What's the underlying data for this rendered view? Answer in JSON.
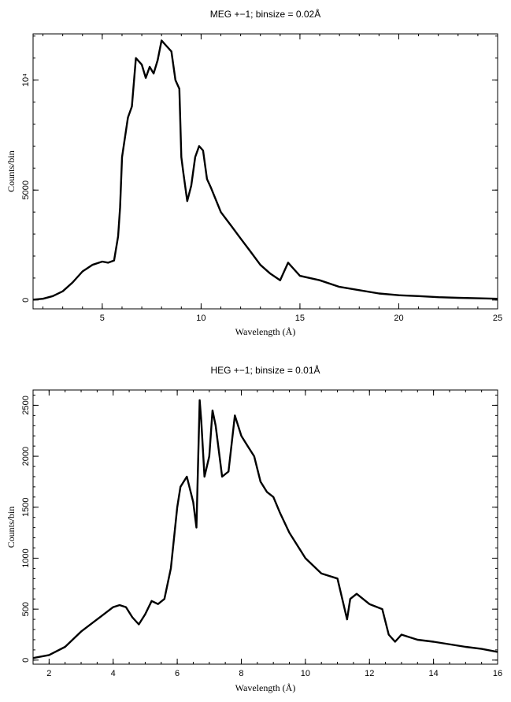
{
  "chart_data": [
    {
      "type": "line",
      "title": "MEG +−1; binsize = 0.02Å",
      "xlabel": "Wavelength (Å)",
      "ylabel": "Counts/bin",
      "xlim": [
        1.5,
        25
      ],
      "ylim": [
        -400,
        12100
      ],
      "xticks": [
        {
          "v": 5,
          "label": "5"
        },
        {
          "v": 10,
          "label": "10"
        },
        {
          "v": 15,
          "label": "15"
        },
        {
          "v": 20,
          "label": "20"
        },
        {
          "v": 25,
          "label": "25"
        }
      ],
      "yticks": [
        {
          "v": 0,
          "label": "0"
        },
        {
          "v": 5000,
          "label": "5000"
        },
        {
          "v": 10000,
          "label": "10⁴"
        }
      ],
      "series": [
        {
          "x": [
            1.5,
            2.0,
            2.5,
            3.0,
            3.5,
            4.0,
            4.5,
            5.0,
            5.3,
            5.6,
            5.8,
            5.9,
            6.0,
            6.1,
            6.3,
            6.5,
            6.7,
            6.8,
            7.0,
            7.2,
            7.4,
            7.6,
            7.8,
            8.0,
            8.2,
            8.5,
            8.7,
            8.9,
            9.0,
            9.1,
            9.3,
            9.5,
            9.7,
            9.9,
            10.1,
            10.3,
            10.5,
            11.0,
            11.5,
            12.0,
            12.5,
            13.0,
            13.5,
            14.0,
            14.4,
            14.8,
            15.0,
            16.0,
            17.0,
            18.0,
            19.0,
            20.0,
            21.0,
            22.0,
            23.0,
            24.0,
            25.0
          ],
          "y": [
            20,
            60,
            180,
            400,
            800,
            1300,
            1600,
            1750,
            1700,
            1800,
            2900,
            4200,
            6500,
            7100,
            8300,
            8800,
            11000,
            10900,
            10700,
            10100,
            10600,
            10300,
            10900,
            11800,
            11600,
            11300,
            10000,
            9600,
            6500,
            5800,
            4500,
            5200,
            6500,
            7000,
            6800,
            5500,
            5100,
            4000,
            3400,
            2800,
            2200,
            1600,
            1200,
            900,
            1700,
            1300,
            1100,
            900,
            600,
            450,
            300,
            220,
            180,
            130,
            100,
            80,
            60
          ]
        }
      ]
    },
    {
      "type": "line",
      "title": "HEG +−1; binsize = 0.01Å",
      "xlabel": "Wavelength (Å)",
      "ylabel": "Counts/bin",
      "xlim": [
        1.5,
        16
      ],
      "ylim": [
        -40,
        2650
      ],
      "xticks": [
        {
          "v": 2,
          "label": "2"
        },
        {
          "v": 4,
          "label": "4"
        },
        {
          "v": 6,
          "label": "6"
        },
        {
          "v": 8,
          "label": "8"
        },
        {
          "v": 10,
          "label": "10"
        },
        {
          "v": 12,
          "label": "12"
        },
        {
          "v": 14,
          "label": "14"
        },
        {
          "v": 16,
          "label": "16"
        }
      ],
      "yticks": [
        {
          "v": 0,
          "label": "0"
        },
        {
          "v": 500,
          "label": "500"
        },
        {
          "v": 1000,
          "label": "1000"
        },
        {
          "v": 1500,
          "label": "1500"
        },
        {
          "v": 2000,
          "label": "2000"
        },
        {
          "v": 2500,
          "label": "2500"
        }
      ],
      "series": [
        {
          "x": [
            1.5,
            2.0,
            2.5,
            3.0,
            3.5,
            4.0,
            4.2,
            4.4,
            4.6,
            4.8,
            5.0,
            5.2,
            5.4,
            5.6,
            5.8,
            6.0,
            6.1,
            6.3,
            6.5,
            6.6,
            6.7,
            6.75,
            6.85,
            7.0,
            7.1,
            7.2,
            7.4,
            7.6,
            7.8,
            8.0,
            8.2,
            8.4,
            8.6,
            8.8,
            9.0,
            9.2,
            9.5,
            10.0,
            10.5,
            11.0,
            11.3,
            11.4,
            11.6,
            12.0,
            12.4,
            12.6,
            12.8,
            13.0,
            13.5,
            14.0,
            15.0,
            15.5,
            16.0
          ],
          "y": [
            20,
            50,
            130,
            280,
            400,
            520,
            540,
            520,
            420,
            350,
            450,
            580,
            550,
            600,
            900,
            1500,
            1700,
            1800,
            1550,
            1300,
            2550,
            2350,
            1800,
            2000,
            2450,
            2300,
            1800,
            1850,
            2400,
            2200,
            2100,
            2000,
            1750,
            1650,
            1600,
            1450,
            1250,
            1000,
            850,
            800,
            400,
            600,
            650,
            550,
            500,
            250,
            180,
            250,
            200,
            180,
            130,
            110,
            80
          ]
        }
      ]
    }
  ]
}
